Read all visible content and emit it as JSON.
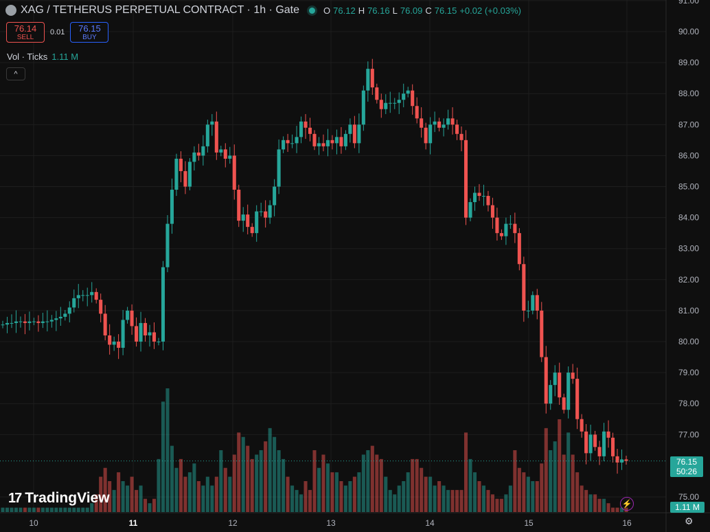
{
  "header": {
    "title": "XAG / TETHERUS PERPETUAL CONTRACT · 1h · Gate",
    "ohlc": {
      "o_label": "O",
      "o": "76.12",
      "h_label": "H",
      "h": "76.16",
      "l_label": "L",
      "l": "76.09",
      "c_label": "C",
      "c": "76.15",
      "change": "+0.02 (+0.03%)"
    }
  },
  "trade": {
    "sell_price": "76.14",
    "sell_label": "SELL",
    "spread": "0.01",
    "buy_price": "76.15",
    "buy_label": "BUY"
  },
  "volume_label": {
    "name": "Vol · Ticks",
    "value": "1.11 M"
  },
  "collapse_icon": "^",
  "brand": {
    "name": "TradingView",
    "mark": "17"
  },
  "price_label": {
    "price": "76.15",
    "countdown": "50:26"
  },
  "volume_badge": "1.11 M",
  "colors": {
    "up": "#26a69a",
    "down": "#ef5350",
    "background": "#0f0f0f",
    "grid": "#1e1e1e"
  },
  "chart_data": {
    "type": "candlestick",
    "symbol": "XAG / TETHERUS PERPETUAL CONTRACT",
    "interval": "1h",
    "y_axis": {
      "ticks": [
        "91.00",
        "90.00",
        "89.00",
        "88.00",
        "87.00",
        "86.00",
        "85.00",
        "84.00",
        "83.00",
        "82.00",
        "81.00",
        "80.00",
        "79.00",
        "78.00",
        "77.00",
        "75.00"
      ],
      "ylim": [
        74.8,
        91.0
      ]
    },
    "x_axis": {
      "ticks": [
        "10",
        "11",
        "12",
        "13",
        "14",
        "15",
        "16"
      ],
      "bold_tick": "11"
    },
    "last_price": 76.15,
    "series": [
      {
        "name": "close",
        "values": [
          80.55,
          80.6,
          80.6,
          80.65,
          80.65,
          80.6,
          80.65,
          80.65,
          80.6,
          80.65,
          80.65,
          80.7,
          80.75,
          80.8,
          80.9,
          81.1,
          81.4,
          81.5,
          81.5,
          81.5,
          81.6,
          81.35,
          80.9,
          80.2,
          79.9,
          80.0,
          79.8,
          80.7,
          81.0,
          80.5,
          80.0,
          80.6,
          80.2,
          80.3,
          80.0,
          80.0,
          82.4,
          83.8,
          84.9,
          85.9,
          85.5,
          85.0,
          85.8,
          86.1,
          86.0,
          86.3,
          87.0,
          87.1,
          86.1,
          86.2,
          85.9,
          86.0,
          84.9,
          83.9,
          84.1,
          83.7,
          83.5,
          84.2,
          84.2,
          84.0,
          84.4,
          85.0,
          86.2,
          86.5,
          86.4,
          86.4,
          86.6,
          87.1,
          86.9,
          86.7,
          86.3,
          86.4,
          86.3,
          86.5,
          86.4,
          86.6,
          86.3,
          86.7,
          87.0,
          86.4,
          87.0,
          88.1,
          88.8,
          88.2,
          87.8,
          87.5,
          87.7,
          87.7,
          87.7,
          87.8,
          88.0,
          88.1,
          87.6,
          87.2,
          86.9,
          86.4,
          87.0,
          87.1,
          86.9,
          87.0,
          87.2,
          87.0,
          86.7,
          86.5,
          84.0,
          84.5,
          84.8,
          84.7,
          84.7,
          84.4,
          84.0,
          83.5,
          83.4,
          83.8,
          83.8,
          83.5,
          82.5,
          81.0,
          81.0,
          81.5,
          81.0,
          79.5,
          78.0,
          78.6,
          79.0,
          78.2,
          77.8,
          79.0,
          78.8,
          77.5,
          77.1,
          76.4,
          77.0,
          76.6,
          76.3,
          77.1,
          76.9,
          76.3,
          76.1,
          76.2,
          76.15
        ]
      },
      {
        "name": "volume",
        "values": [
          1,
          1,
          1,
          1,
          1,
          1,
          1,
          1,
          1,
          1,
          1,
          1,
          1,
          1,
          1,
          1,
          1,
          1,
          1,
          1,
          2,
          4,
          8,
          10,
          7,
          5,
          9,
          7,
          6,
          8,
          5,
          6,
          3,
          2,
          3,
          12,
          25,
          28,
          15,
          10,
          12,
          8,
          9,
          11,
          7,
          6,
          8,
          6,
          8,
          14,
          10,
          8,
          13,
          18,
          17,
          15,
          12,
          13,
          14,
          16,
          19,
          17,
          14,
          12,
          8,
          6,
          5,
          4,
          7,
          5,
          14,
          10,
          13,
          11,
          9,
          9,
          7,
          6,
          7,
          8,
          9,
          13,
          14,
          15,
          13,
          12,
          8,
          5,
          4,
          6,
          7,
          9,
          12,
          12,
          10,
          8,
          8,
          6,
          7,
          6,
          5,
          5,
          5,
          5,
          18,
          12,
          9,
          7,
          6,
          5,
          4,
          3,
          3,
          4,
          6,
          14,
          10,
          9,
          8,
          7,
          7,
          11,
          19,
          14,
          16,
          21,
          13,
          18,
          13,
          9,
          6,
          5,
          4,
          4,
          3,
          3,
          2,
          1,
          1,
          1,
          1
        ]
      }
    ]
  }
}
